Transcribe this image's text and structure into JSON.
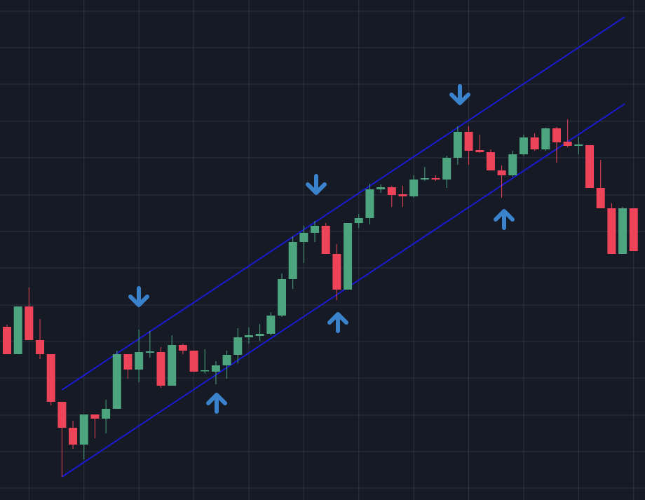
{
  "chart_data": {
    "type": "candlestick",
    "open": [
      247,
      208,
      276,
      228,
      208,
      140,
      103,
      79,
      122,
      116,
      130,
      208,
      186,
      210,
      211,
      163,
      221,
      213,
      184,
      183,
      192,
      207,
      232,
      234,
      237,
      263,
      315,
      368,
      381,
      391,
      351,
      300,
      395,
      402,
      443,
      446,
      436,
      433,
      457,
      459,
      457,
      488,
      525,
      499,
      496,
      470,
      463,
      493,
      517,
      500,
      530,
      511,
      505,
      506,
      445,
      416,
      351,
      416
    ],
    "high": [
      250,
      276,
      303,
      258,
      208,
      140,
      113,
      122,
      122,
      143,
      213,
      208,
      243,
      241,
      218,
      235,
      223,
      213,
      215,
      198,
      213,
      245,
      246,
      251,
      268,
      323,
      376,
      391,
      398,
      395,
      365,
      395,
      408,
      451,
      450,
      448,
      448,
      463,
      475,
      463,
      491,
      533,
      533,
      521,
      500,
      477,
      498,
      521,
      523,
      531,
      532,
      543,
      518,
      506,
      485,
      423,
      418,
      416
    ],
    "low": [
      208,
      208,
      228,
      201,
      135,
      33,
      73,
      58,
      88,
      95,
      130,
      173,
      168,
      203,
      160,
      163,
      208,
      183,
      180,
      165,
      173,
      195,
      223,
      227,
      235,
      261,
      301,
      338,
      368,
      351,
      285,
      300,
      388,
      393,
      438,
      418,
      418,
      431,
      455,
      455,
      445,
      478,
      478,
      495,
      470,
      431,
      461,
      491,
      498,
      498,
      481,
      503,
      493,
      445,
      416,
      351,
      351,
      355
    ],
    "close": [
      208,
      276,
      228,
      208,
      140,
      103,
      79,
      122,
      116,
      130,
      208,
      186,
      211,
      212,
      163,
      221,
      213,
      183,
      185,
      192,
      207,
      232,
      235,
      237,
      263,
      315,
      368,
      381,
      391,
      351,
      300,
      395,
      402,
      443,
      446,
      435,
      433,
      457,
      459,
      457,
      488,
      525,
      498,
      496,
      470,
      463,
      493,
      517,
      500,
      530,
      510,
      505,
      507,
      445,
      416,
      351,
      416,
      355
    ],
    "up_color": "#4ca57f",
    "down_color": "#ee4459",
    "ylim": [
      0,
      713
    ],
    "yticks": [
      17,
      69,
      121,
      174,
      226,
      278,
      331,
      383,
      435,
      488,
      540,
      593,
      645,
      697
    ],
    "grid": true,
    "channel": {
      "color": "#1a1ad0",
      "lower": {
        "x": [
          5,
          56.2
        ],
        "values": [
          33,
          565
        ]
      },
      "upper": {
        "x": [
          5,
          56.2
        ],
        "values": [
          157,
          689
        ]
      }
    }
  }
}
